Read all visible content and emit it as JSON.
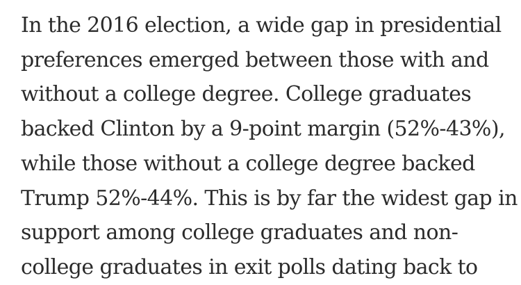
{
  "page": {
    "background_color": "#ffffff",
    "text_color": "#2b2b2b"
  },
  "paragraph": {
    "lines": [
      "In the 2016 election, a wide gap in presidential",
      "preferences emerged between those with and",
      "without a college degree. College graduates",
      "backed Clinton by a 9-point margin (52%-43%),",
      "while those without a college degree backed",
      "Trump 52%-44%. This is by far the widest gap in",
      "support among college graduates and non-",
      "college graduates in exit polls dating back to"
    ]
  }
}
